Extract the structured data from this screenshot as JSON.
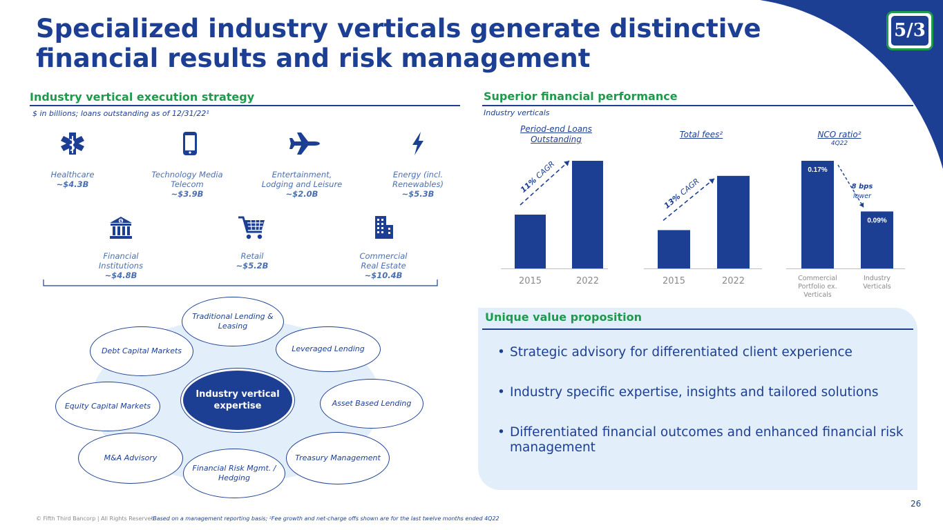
{
  "logo_text": "5/3",
  "title": "Specialized industry verticals generate distinctive financial results and risk management",
  "left": {
    "heading": "Industry vertical execution strategy",
    "note": "$ in billions; loans outstanding as of 12/31/22¹",
    "industries": [
      {
        "icon": "caduceus-icon",
        "name": "Healthcare",
        "value": "~$4.3B"
      },
      {
        "icon": "smartphone-icon",
        "name": "Technology Media Telecom",
        "value": "~$3.9B"
      },
      {
        "icon": "airplane-icon",
        "name": "Entertainment, Lodging and Leisure",
        "value": "~$2.0B"
      },
      {
        "icon": "lightning-icon",
        "name": "Energy (incl. Renewables)",
        "value": "~$5.3B"
      },
      {
        "icon": "bank-icon",
        "name": "Financial Institutions",
        "value": "~$4.8B"
      },
      {
        "icon": "shopping-cart-icon",
        "name": "Retail",
        "value": "~$5.2B"
      },
      {
        "icon": "building-icon",
        "name": "Commercial Real Estate",
        "value": "~$10.4B"
      }
    ],
    "hub": {
      "center": "Industry vertical expertise",
      "spokes": [
        "Traditional Lending & Leasing",
        "Leveraged Lending",
        "Asset Based Lending",
        "Treasury Management",
        "Financial Risk Mgmt. / Hedging",
        "M&A Advisory",
        "Equity Capital Markets",
        "Debt Capital Markets"
      ]
    }
  },
  "right": {
    "heading": "Superior financial performance",
    "note": "Industry verticals",
    "charts": [
      {
        "title": "Period-end Loans Outstanding",
        "subtitle": "",
        "annotation": "11% CAGR"
      },
      {
        "title": "Total fees²",
        "subtitle": "",
        "annotation": "13% CAGR"
      },
      {
        "title": "NCO ratio²",
        "subtitle": "4Q22",
        "annotation_bold": "8 bps",
        "annotation_small": "lower"
      }
    ]
  },
  "chart_data": [
    {
      "type": "bar",
      "title": "Period-end Loans Outstanding",
      "categories": [
        "2015",
        "2022"
      ],
      "values": [
        0.5,
        1.0
      ],
      "annotation": "11% CAGR"
    },
    {
      "type": "bar",
      "title": "Total fees²",
      "categories": [
        "2015",
        "2022"
      ],
      "values": [
        0.41,
        0.99
      ],
      "annotation": "13% CAGR"
    },
    {
      "type": "bar",
      "title": "NCO ratio²",
      "subtitle": "4Q22",
      "categories": [
        "Commercial Portfolio ex. Verticals",
        "Industry Verticals"
      ],
      "values": [
        0.17,
        0.09
      ],
      "value_labels": [
        "0.17%",
        "0.09%"
      ],
      "unit": "%"
    }
  ],
  "uvp": {
    "heading": "Unique value proposition",
    "bullets": [
      "Strategic advisory for differentiated client experience",
      "Industry specific expertise, insights and tailored solutions",
      "Differentiated financial outcomes and enhanced financial risk management"
    ]
  },
  "footer": {
    "copyright": "© Fifth Third Bancorp | All Rights Reserved",
    "footnote": "¹Based on a management reporting basis; ²Fee growth and net-charge offs shown are for the last twelve months ended 4Q22",
    "page_number": "26"
  },
  "colors": {
    "navy": "#1c3f94",
    "green": "#1e9a4c",
    "panel": "#e2eef9",
    "axis": "#bfbfbf"
  }
}
